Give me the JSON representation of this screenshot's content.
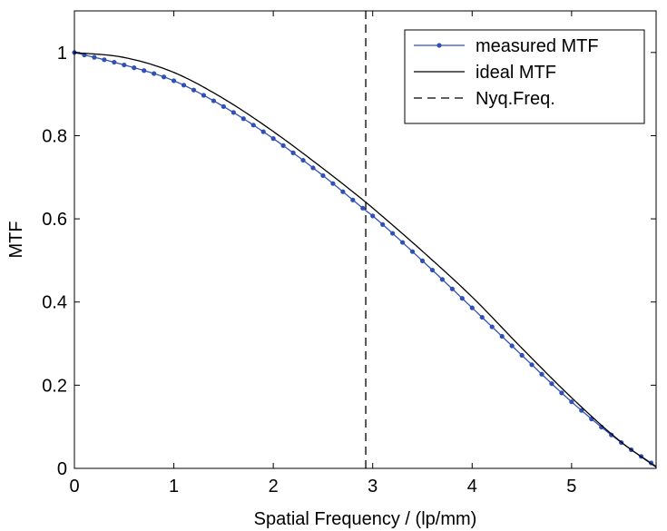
{
  "chart_data": {
    "type": "line",
    "title": "",
    "xlabel": "Spatial Frequency / (lp/mm)",
    "ylabel": "MTF",
    "xlim": [
      0,
      5.85
    ],
    "ylim": [
      0,
      1.1
    ],
    "x_ticks": [
      0,
      1,
      2,
      3,
      4,
      5
    ],
    "y_ticks": [
      0,
      0.2,
      0.4,
      0.6,
      0.8,
      1
    ],
    "x_tick_labels": [
      "0",
      "1",
      "2",
      "3",
      "4",
      "5"
    ],
    "y_tick_labels": [
      "0",
      "0.2",
      "0.4",
      "0.6",
      "0.8",
      "1"
    ],
    "grid": false,
    "legend_position": "top-right",
    "series": [
      {
        "name": "measured MTF",
        "style": "solid-with-dots",
        "color": "#3050b8",
        "x": [
          0.0,
          0.5,
          1.0,
          1.5,
          2.0,
          2.5,
          2.93,
          3.0,
          3.5,
          4.0,
          4.5,
          5.0,
          5.5,
          5.85
        ],
        "y": [
          1.0,
          0.97,
          0.932,
          0.87,
          0.793,
          0.704,
          0.62,
          0.607,
          0.499,
          0.386,
          0.272,
          0.16,
          0.062,
          0.005
        ]
      },
      {
        "name": "ideal MTF",
        "style": "solid",
        "color": "#000000",
        "x": [
          0.0,
          0.5,
          1.0,
          1.5,
          2.0,
          2.5,
          2.93,
          3.0,
          3.5,
          4.0,
          4.5,
          5.0,
          5.5,
          5.85
        ],
        "y": [
          1.0,
          0.988,
          0.952,
          0.889,
          0.81,
          0.721,
          0.64,
          0.626,
          0.522,
          0.412,
          0.289,
          0.17,
          0.063,
          0.003
        ]
      },
      {
        "name": "Nyq.Freq.",
        "style": "dashed",
        "color": "#000000",
        "x": [
          2.93,
          2.93
        ],
        "y": [
          0,
          1.1
        ]
      }
    ]
  }
}
